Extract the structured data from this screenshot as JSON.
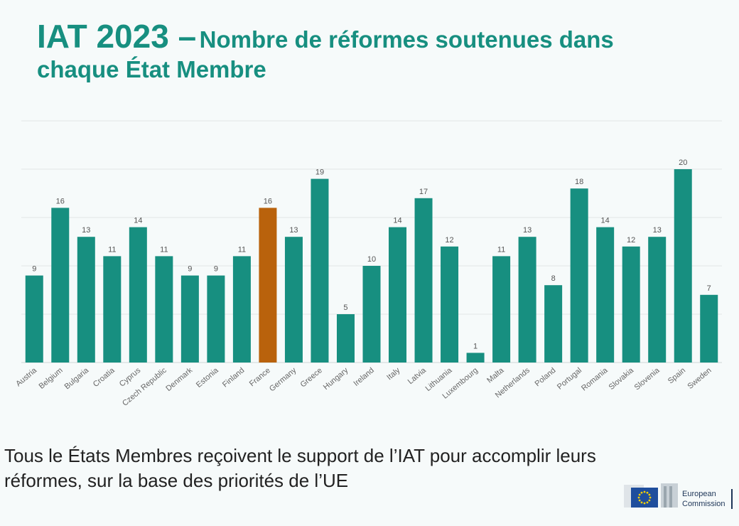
{
  "title": {
    "part1": "IAT 2023 –",
    "part2": "Nombre de réformes soutenues dans",
    "line2": "chaque État Membre"
  },
  "colors": {
    "accent": "#178f80",
    "bar": "#178f80",
    "highlight": "#b9620c"
  },
  "chart_data": {
    "type": "bar",
    "categories": [
      "Austria",
      "Belgium",
      "Bulgaria",
      "Croatia",
      "Cyprus",
      "Czech Republic",
      "Denmark",
      "Estonia",
      "Finland",
      "France",
      "Germany",
      "Greece",
      "Hungary",
      "Ireland",
      "Italy",
      "Latvia",
      "Lithuania",
      "Luxembourg",
      "Malta",
      "Netherlands",
      "Poland",
      "Portugal",
      "Romania",
      "Slovakia",
      "Slovenia",
      "Spain",
      "Sweden"
    ],
    "values": [
      9,
      16,
      13,
      11,
      14,
      11,
      9,
      9,
      11,
      16,
      13,
      19,
      5,
      10,
      14,
      17,
      12,
      1,
      11,
      13,
      8,
      18,
      14,
      12,
      13,
      20,
      7
    ],
    "highlight": "France",
    "ylim": [
      0,
      25
    ],
    "grid": true,
    "data_labels": true,
    "title": "",
    "xlabel": "",
    "ylabel": ""
  },
  "footnote": {
    "line1": "Tous le États Membres reçoivent le support de l’IAT pour accomplir leurs",
    "line2": "réformes, sur la base des priorités de l’UE"
  },
  "logo": {
    "line1": "European",
    "line2": "Commission"
  }
}
